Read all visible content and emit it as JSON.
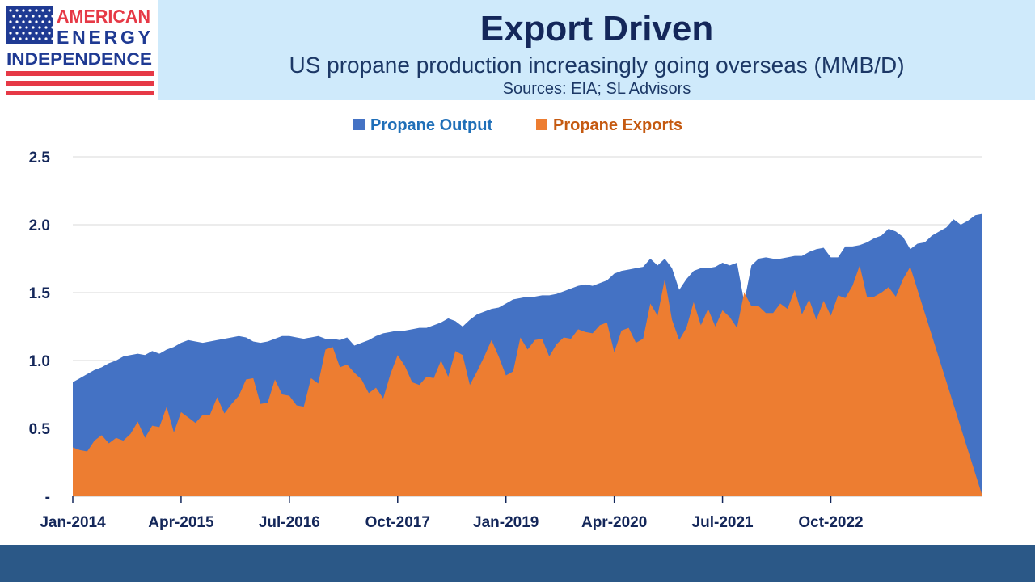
{
  "header": {
    "logo": {
      "line1": "AMERICAN",
      "line2": "ENERGY",
      "line3": "INDEPENDENCE",
      "colors": {
        "red": "#e63946",
        "navy": "#1f3a93"
      }
    },
    "title": "Export Driven",
    "subtitle": "US propane production increasingly going overseas (MMB/D)",
    "source": "Sources: EIA; SL Advisors"
  },
  "chart_data": {
    "type": "area",
    "x_start": "2014-01",
    "x_frequency": "monthly",
    "ylim": [
      0,
      2.5
    ],
    "y_ticks": [
      {
        "value": 0,
        "label": "-"
      },
      {
        "value": 0.5,
        "label": "0.5"
      },
      {
        "value": 1.0,
        "label": "1.0"
      },
      {
        "value": 1.5,
        "label": "1.5"
      },
      {
        "value": 2.0,
        "label": "2.0"
      },
      {
        "value": 2.5,
        "label": "2.5"
      }
    ],
    "x_ticks": [
      {
        "index": 0,
        "label": "Jan-2014"
      },
      {
        "index": 15,
        "label": "Apr-2015"
      },
      {
        "index": 30,
        "label": "Jul-2016"
      },
      {
        "index": 45,
        "label": "Oct-2017"
      },
      {
        "index": 60,
        "label": "Jan-2019"
      },
      {
        "index": 75,
        "label": "Apr-2020"
      },
      {
        "index": 90,
        "label": "Jul-2021"
      },
      {
        "index": 105,
        "label": "Oct-2022"
      }
    ],
    "grid": true,
    "legend_position": "top-center",
    "series": [
      {
        "name": "Propane Output",
        "color": "#4472c4",
        "values": [
          0.84,
          0.87,
          0.9,
          0.93,
          0.95,
          0.98,
          1.0,
          1.03,
          1.04,
          1.05,
          1.04,
          1.07,
          1.05,
          1.08,
          1.1,
          1.13,
          1.15,
          1.14,
          1.13,
          1.14,
          1.15,
          1.16,
          1.17,
          1.18,
          1.17,
          1.14,
          1.13,
          1.14,
          1.16,
          1.18,
          1.18,
          1.17,
          1.16,
          1.17,
          1.18,
          1.16,
          1.16,
          1.15,
          1.17,
          1.11,
          1.13,
          1.15,
          1.18,
          1.2,
          1.21,
          1.22,
          1.22,
          1.23,
          1.24,
          1.24,
          1.26,
          1.28,
          1.31,
          1.29,
          1.25,
          1.3,
          1.34,
          1.36,
          1.38,
          1.39,
          1.42,
          1.45,
          1.46,
          1.47,
          1.47,
          1.48,
          1.48,
          1.49,
          1.51,
          1.53,
          1.55,
          1.56,
          1.55,
          1.57,
          1.59,
          1.64,
          1.66,
          1.67,
          1.68,
          1.69,
          1.75,
          1.7,
          1.75,
          1.68,
          1.52,
          1.6,
          1.66,
          1.68,
          1.68,
          1.69,
          1.72,
          1.7,
          1.72,
          1.43,
          1.7,
          1.75,
          1.76,
          1.75,
          1.75,
          1.76,
          1.77,
          1.77,
          1.8,
          1.82,
          1.83,
          1.76,
          1.76,
          1.84,
          1.84,
          1.85,
          1.87,
          1.9,
          1.92,
          1.97,
          1.95,
          1.91,
          1.82,
          1.86,
          1.87,
          1.92,
          1.95,
          1.98,
          2.04,
          2.0,
          2.03,
          2.07,
          2.08
        ]
      },
      {
        "name": "Propane Exports",
        "color": "#ed7d31",
        "values": [
          0.36,
          0.34,
          0.33,
          0.41,
          0.45,
          0.39,
          0.43,
          0.41,
          0.46,
          0.55,
          0.43,
          0.52,
          0.51,
          0.66,
          0.47,
          0.62,
          0.58,
          0.54,
          0.6,
          0.6,
          0.73,
          0.61,
          0.68,
          0.74,
          0.86,
          0.87,
          0.68,
          0.69,
          0.86,
          0.75,
          0.74,
          0.67,
          0.66,
          0.87,
          0.83,
          1.08,
          1.1,
          0.95,
          0.97,
          0.91,
          0.86,
          0.76,
          0.8,
          0.72,
          0.9,
          1.04,
          0.96,
          0.84,
          0.82,
          0.88,
          0.87,
          1.0,
          0.88,
          1.07,
          1.04,
          0.82,
          0.92,
          1.03,
          1.15,
          1.03,
          0.89,
          0.92,
          1.17,
          1.08,
          1.15,
          1.16,
          1.03,
          1.12,
          1.17,
          1.16,
          1.23,
          1.21,
          1.2,
          1.26,
          1.28,
          1.06,
          1.22,
          1.24,
          1.13,
          1.16,
          1.42,
          1.33,
          1.6,
          1.3,
          1.15,
          1.24,
          1.43,
          1.26,
          1.38,
          1.25,
          1.37,
          1.32,
          1.24,
          1.5,
          1.4,
          1.4,
          1.35,
          1.35,
          1.42,
          1.38,
          1.52,
          1.34,
          1.45,
          1.3,
          1.44,
          1.33,
          1.48,
          1.46,
          1.55,
          1.7,
          1.47,
          1.47,
          1.5,
          1.54,
          1.47,
          1.6,
          1.69
        ]
      }
    ]
  }
}
